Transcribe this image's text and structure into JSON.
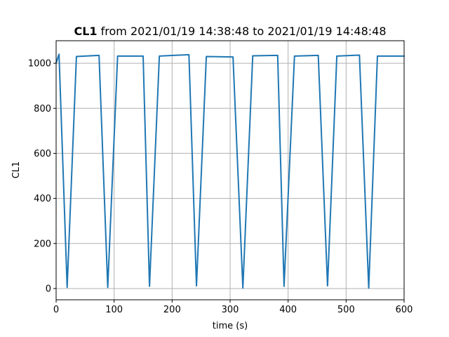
{
  "chart_data": {
    "type": "line",
    "title_bold": "CL1",
    "title_rest": " from 2021/01/19 14:38:48 to 2021/01/19 14:48:48",
    "xlabel": "time (s)",
    "ylabel": "CL1",
    "xlim": [
      0,
      600
    ],
    "ylim": [
      -50,
      1100
    ],
    "xticks": [
      0,
      100,
      200,
      300,
      400,
      500,
      600
    ],
    "yticks": [
      0,
      200,
      400,
      600,
      800,
      1000
    ],
    "grid": true,
    "color": "#1f77b4",
    "series": [
      {
        "x": [
          0,
          3,
          5,
          19,
          35,
          74,
          89,
          106,
          150,
          161,
          178,
          229,
          242,
          259,
          305,
          322,
          339,
          382,
          393,
          411,
          452,
          468,
          484,
          523,
          539,
          554,
          600
        ],
        "y": [
          1000,
          1025,
          1040,
          5,
          1030,
          1035,
          5,
          1032,
          1032,
          10,
          1032,
          1038,
          12,
          1030,
          1028,
          2,
          1033,
          1035,
          10,
          1032,
          1035,
          12,
          1032,
          1036,
          2,
          1032,
          1032
        ]
      }
    ]
  }
}
